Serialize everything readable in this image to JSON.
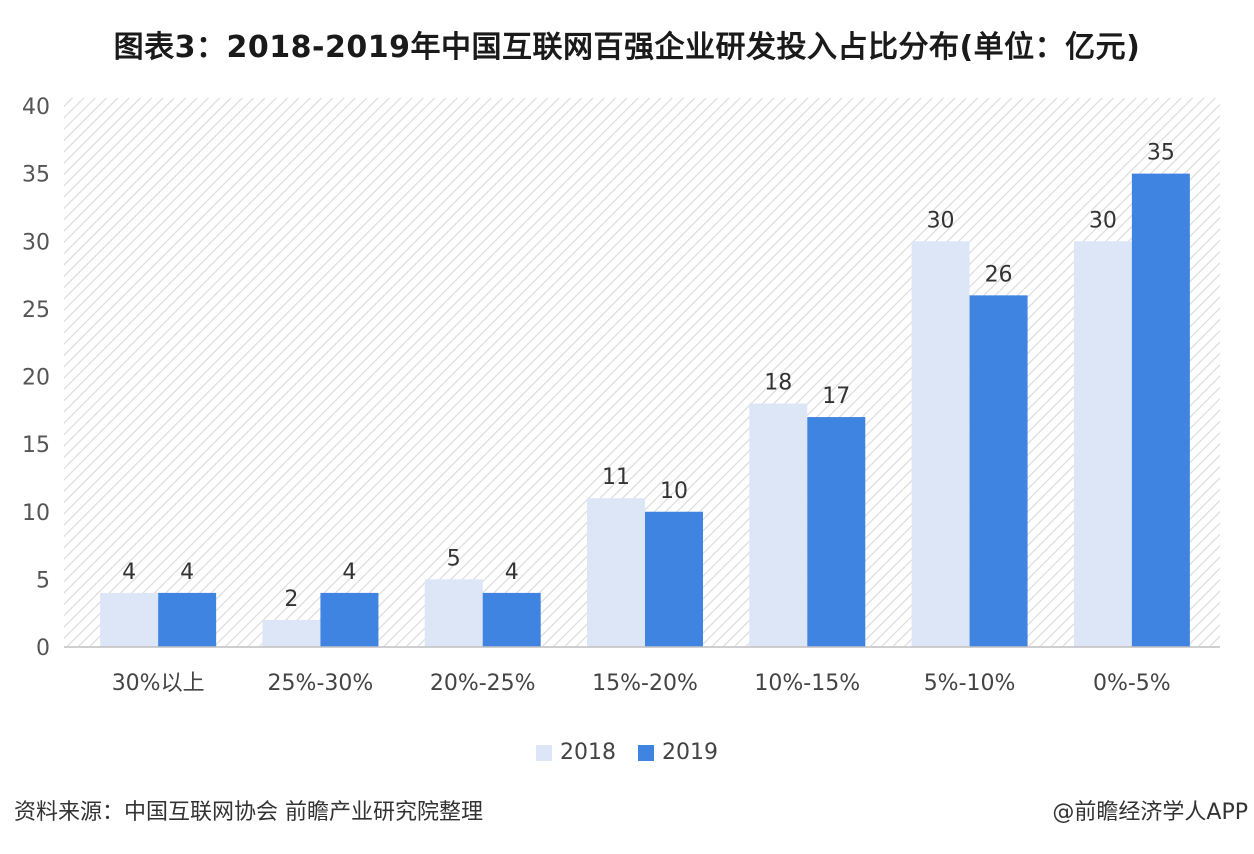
{
  "title": "图表3：2018-2019年中国互联网百强企业研发投入占比分布(单位：亿元)",
  "colors": {
    "s2018": "#dce6f7",
    "s2019": "#3f84e0"
  },
  "chart_data": {
    "type": "bar",
    "categories": [
      "30%以上",
      "25%-30%",
      "20%-25%",
      "15%-20%",
      "10%-15%",
      "5%-10%",
      "0%-5%"
    ],
    "series": [
      {
        "name": "2018",
        "values": [
          4,
          2,
          5,
          11,
          18,
          30,
          30
        ]
      },
      {
        "name": "2019",
        "values": [
          4,
          4,
          4,
          10,
          17,
          26,
          35
        ]
      }
    ],
    "ylim": [
      0,
      40
    ],
    "yticks": [
      0,
      5,
      10,
      15,
      20,
      25,
      30,
      35,
      40
    ],
    "legend": "bottom-center"
  },
  "footer": {
    "source": "资料来源：中国互联网协会 前瞻产业研究院整理",
    "brand": "@前瞻经济学人APP"
  }
}
